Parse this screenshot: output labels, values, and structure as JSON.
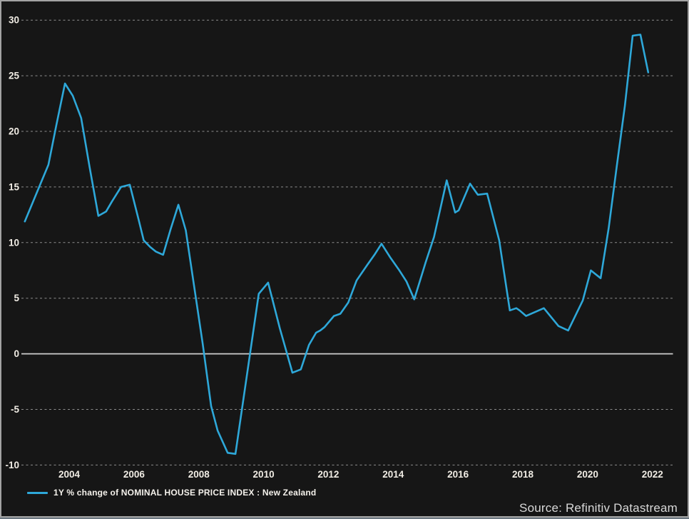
{
  "chart_data": {
    "type": "line",
    "title": "",
    "series": [
      {
        "name": "1Y % change of NOMINAL HOUSE PRICE INDEX : New Zealand",
        "color": "#2ea8d9",
        "points": [
          [
            2002.63,
            11.9
          ],
          [
            2003.36,
            17.0
          ],
          [
            2003.6,
            20.5
          ],
          [
            2003.87,
            24.3
          ],
          [
            2004.11,
            23.2
          ],
          [
            2004.37,
            21.2
          ],
          [
            2004.63,
            16.8
          ],
          [
            2004.9,
            12.4
          ],
          [
            2005.14,
            12.8
          ],
          [
            2005.32,
            13.7
          ],
          [
            2005.6,
            15.0
          ],
          [
            2005.87,
            15.2
          ],
          [
            2006.14,
            12.1
          ],
          [
            2006.3,
            10.2
          ],
          [
            2006.5,
            9.6
          ],
          [
            2006.67,
            9.2
          ],
          [
            2006.9,
            8.9
          ],
          [
            2007.13,
            11.2
          ],
          [
            2007.37,
            13.4
          ],
          [
            2007.6,
            11.1
          ],
          [
            2007.87,
            5.8
          ],
          [
            2008.12,
            0.9
          ],
          [
            2008.38,
            -4.7
          ],
          [
            2008.58,
            -6.9
          ],
          [
            2008.89,
            -8.9
          ],
          [
            2009.13,
            -9.0
          ],
          [
            2009.85,
            5.4
          ],
          [
            2010.14,
            6.4
          ],
          [
            2010.5,
            2.3
          ],
          [
            2010.89,
            -1.7
          ],
          [
            2011.15,
            -1.4
          ],
          [
            2011.4,
            0.8
          ],
          [
            2011.62,
            1.9
          ],
          [
            2011.75,
            2.1
          ],
          [
            2011.88,
            2.4
          ],
          [
            2012.17,
            3.4
          ],
          [
            2012.37,
            3.6
          ],
          [
            2012.61,
            4.6
          ],
          [
            2012.87,
            6.6
          ],
          [
            2013.2,
            8.0
          ],
          [
            2013.42,
            8.9
          ],
          [
            2013.64,
            9.9
          ],
          [
            2013.9,
            8.7
          ],
          [
            2014.19,
            7.5
          ],
          [
            2014.41,
            6.5
          ],
          [
            2014.65,
            4.9
          ],
          [
            2015.0,
            8.2
          ],
          [
            2015.26,
            10.5
          ],
          [
            2015.65,
            15.6
          ],
          [
            2015.91,
            12.7
          ],
          [
            2016.02,
            12.9
          ],
          [
            2016.37,
            15.3
          ],
          [
            2016.61,
            14.3
          ],
          [
            2016.9,
            14.4
          ],
          [
            2017.27,
            10.2
          ],
          [
            2017.6,
            3.9
          ],
          [
            2017.8,
            4.1
          ],
          [
            2017.9,
            3.9
          ],
          [
            2018.1,
            3.4
          ],
          [
            2018.65,
            4.1
          ],
          [
            2019.1,
            2.5
          ],
          [
            2019.4,
            2.1
          ],
          [
            2019.85,
            4.8
          ],
          [
            2020.1,
            7.5
          ],
          [
            2020.4,
            6.8
          ],
          [
            2020.65,
            11.3
          ],
          [
            2020.9,
            16.9
          ],
          [
            2021.15,
            22.3
          ],
          [
            2021.39,
            28.6
          ],
          [
            2021.63,
            28.7
          ],
          [
            2021.87,
            25.3
          ]
        ]
      }
    ],
    "x_axis": {
      "ticks": [
        2004,
        2006,
        2008,
        2010,
        2012,
        2014,
        2016,
        2018,
        2020,
        2022
      ],
      "range": [
        2002.5,
        2022.6
      ]
    },
    "y_axis": {
      "ticks": [
        30,
        25,
        20,
        15,
        10,
        5,
        0,
        -5,
        -10
      ],
      "range": [
        -10,
        30
      ],
      "zero_line_solid": true
    },
    "grid": {
      "horizontal": "dashed",
      "vertical": false
    },
    "legend": {
      "position": "bottom-left",
      "label": "1Y % change of NOMINAL HOUSE PRICE INDEX : New Zealand"
    },
    "source": "Source: Refinitiv Datastream",
    "colors": {
      "line": "#2ea8d9",
      "background": "#161616",
      "grid": "#8c8c8c",
      "zero_line": "#cdcdcd",
      "tick_text": "#f0ece4",
      "legend_text": "#f5f2ec",
      "source_text": "#d9d9d9",
      "border": "#a3a3a3",
      "bottom_edge": "#6b7680"
    }
  }
}
